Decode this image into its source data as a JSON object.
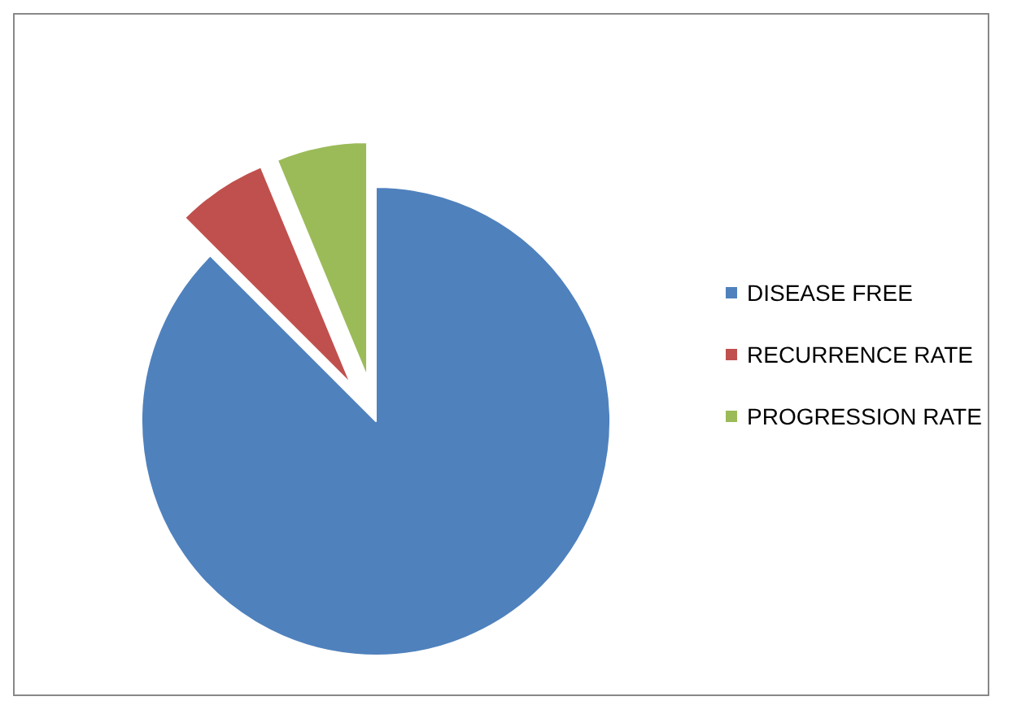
{
  "chart_data": {
    "type": "pie",
    "categories": [
      "DISEASE FREE",
      "RECURRENCE RATE",
      "PROGRESSION RATE"
    ],
    "values": [
      87.5,
      6.25,
      6.25
    ],
    "colors": [
      "#4f81bd",
      "#c0504d",
      "#9bbb59"
    ],
    "legend": "right"
  }
}
